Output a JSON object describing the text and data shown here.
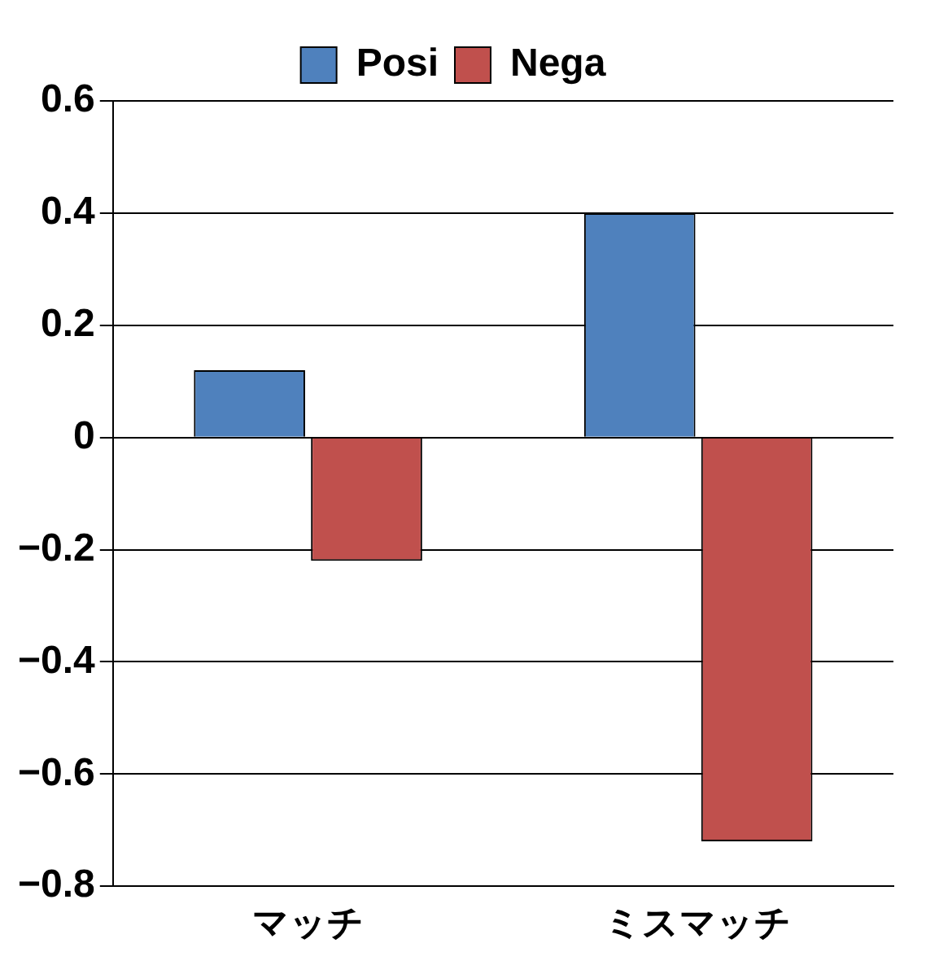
{
  "chart_data": {
    "type": "bar",
    "categories": [
      "マッチ",
      "ミスマッチ"
    ],
    "series": [
      {
        "name": "Posi",
        "color": "#4f81bd",
        "values": [
          0.12,
          0.4
        ]
      },
      {
        "name": "Nega",
        "color": "#c0504d",
        "values": [
          -0.22,
          -0.72
        ]
      }
    ],
    "ylim": [
      -0.8,
      0.6
    ],
    "yticks": [
      {
        "value": -0.8,
        "label": "−0.8"
      },
      {
        "value": -0.6,
        "label": "−0.6"
      },
      {
        "value": -0.4,
        "label": "−0.4"
      },
      {
        "value": -0.2,
        "label": "−0.2"
      },
      0,
      {
        "value": 0.2,
        "label": "0.2"
      },
      {
        "value": 0.4,
        "label": "0.4"
      },
      {
        "value": 0.6,
        "label": "0.6"
      }
    ],
    "grid": "y",
    "legend": "top"
  }
}
